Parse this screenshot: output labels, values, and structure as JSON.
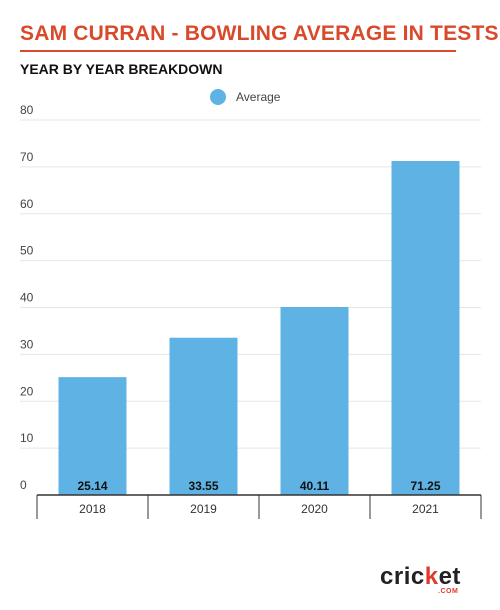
{
  "header": {
    "title": "SAM CURRAN - BOWLING AVERAGE IN TESTS",
    "subtitle": "YEAR BY YEAR BREAKDOWN"
  },
  "colors": {
    "accent": "#d94a2b",
    "bar": "#5eb3e4",
    "grid": "#e6e6e6",
    "axis": "#333333"
  },
  "chart_data": {
    "type": "bar",
    "categories": [
      "2018",
      "2019",
      "2020",
      "2021"
    ],
    "series": [
      {
        "name": "Average",
        "values": [
          25.14,
          33.55,
          40.11,
          71.25
        ]
      }
    ],
    "value_labels": [
      "25.14",
      "33.55",
      "40.11",
      "71.25"
    ],
    "yticks": [
      "0",
      "10",
      "20",
      "30",
      "40",
      "50",
      "60",
      "70",
      "80"
    ],
    "ylim": [
      0,
      80
    ],
    "grid": true,
    "legend_position": "top-center"
  },
  "logo": {
    "word_main": "cric",
    "word_accent": "k",
    "word_end": "et",
    "sub": ".COM",
    "icon": "cricket-com-logo"
  }
}
